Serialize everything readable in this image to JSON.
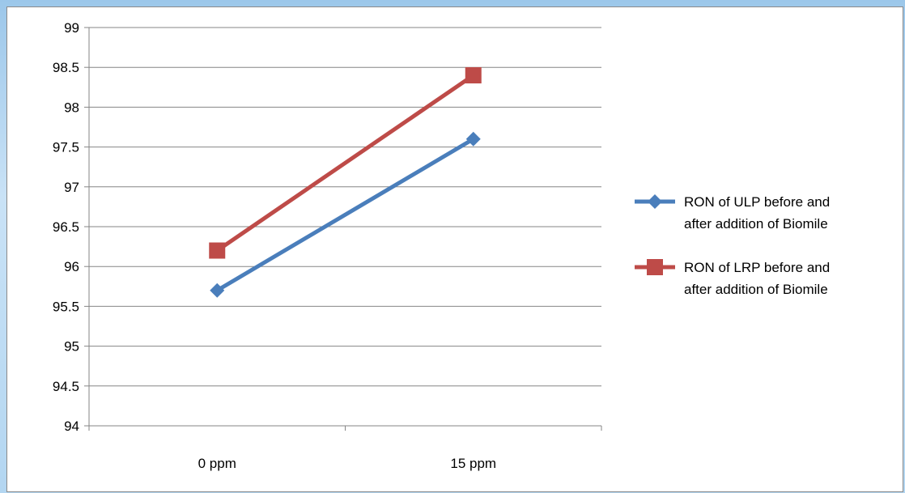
{
  "chart_data": {
    "type": "line",
    "categories": [
      "0 ppm",
      "15 ppm"
    ],
    "ylim": [
      94,
      99
    ],
    "ytick_step": 0.5,
    "y_ticks": [
      "94",
      "94.5",
      "95",
      "95.5",
      "96",
      "96.5",
      "97",
      "97.5",
      "98",
      "98.5",
      "99"
    ],
    "grid": "horizontal",
    "legend_position": "right",
    "series": [
      {
        "name_line1": "RON of ULP before and",
        "name_line2": "after addition of Biomile",
        "values": [
          95.7,
          97.6
        ],
        "color": "#4a7ebb",
        "marker": "diamond"
      },
      {
        "name_line1": "RON of LRP before and",
        "name_line2": "after addition of Biomile",
        "values": [
          96.2,
          98.4
        ],
        "color": "#be4b48",
        "marker": "square"
      }
    ]
  }
}
